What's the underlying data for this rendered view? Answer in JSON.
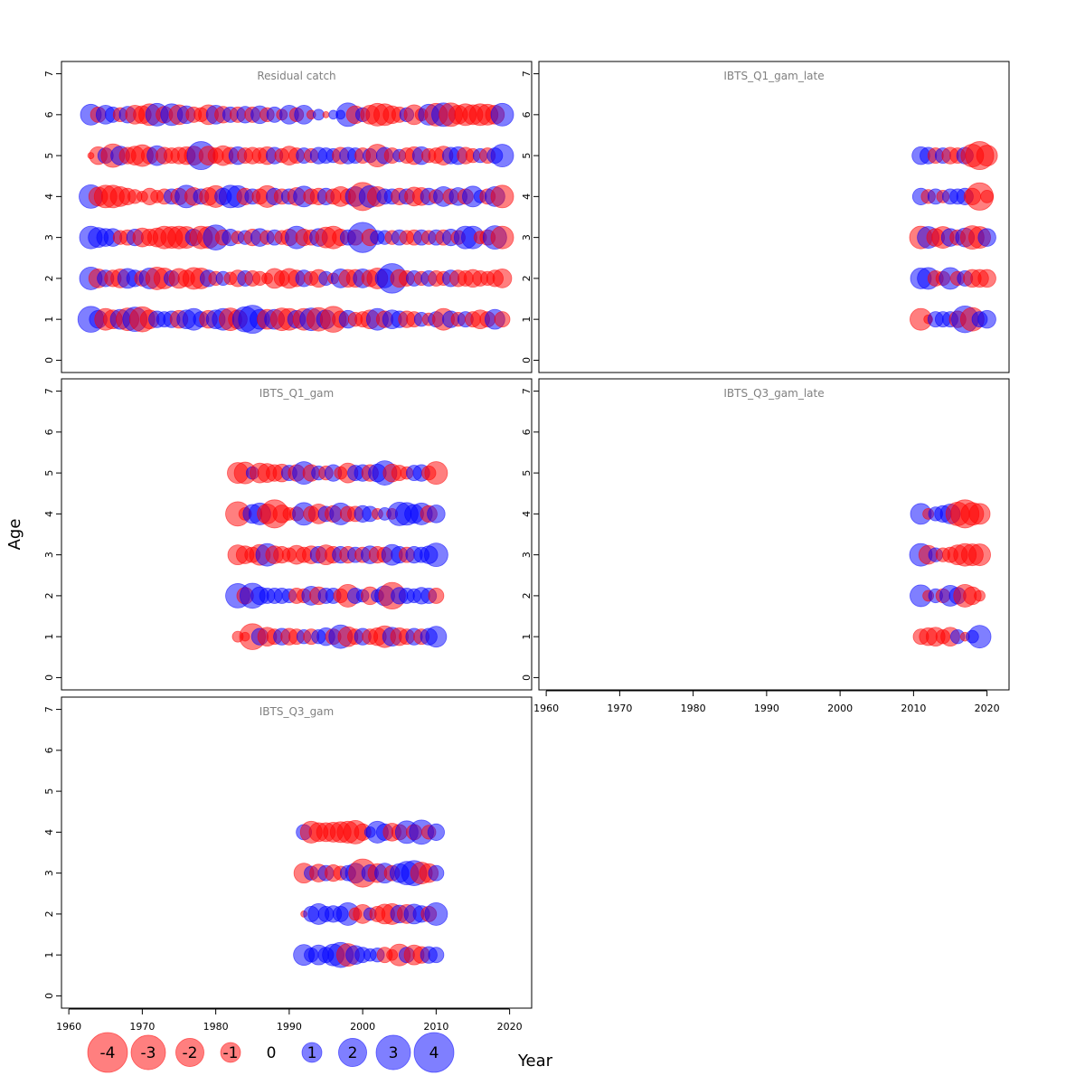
{
  "chart_data": {
    "type": "scatter",
    "encoding": "bubble",
    "xlabel": "Year",
    "ylabel": "Age",
    "xlim": [
      1959,
      2023
    ],
    "ylim": [
      -0.3,
      7.3
    ],
    "x_ticks": [
      "1960",
      "1970",
      "1980",
      "1990",
      "2000",
      "2010",
      "2020"
    ],
    "y_ticks": [
      "0",
      "1",
      "2",
      "3",
      "4",
      "5",
      "6",
      "7"
    ],
    "colors": {
      "positive": "#0000ff",
      "negative": "#ff0000",
      "fill_alpha": 0.5
    },
    "legend": {
      "placement": "bottom-left",
      "items": [
        {
          "label": "-4",
          "value": -4
        },
        {
          "label": "-3",
          "value": -3
        },
        {
          "label": "-2",
          "value": -2
        },
        {
          "label": "-1",
          "value": -1
        },
        {
          "label": "0",
          "value": 0
        },
        {
          "label": "1",
          "value": 1
        },
        {
          "label": "2",
          "value": 2
        },
        {
          "label": "3",
          "value": 3
        },
        {
          "label": "4",
          "value": 4
        }
      ]
    },
    "panels": [
      {
        "title": "Residual catch",
        "years": [
          1963,
          2019
        ],
        "ages": [
          1,
          2,
          3,
          4,
          5,
          6
        ],
        "residuals": {
          "6": [
            1.1,
            -0.6,
            0.9,
            0.6,
            -0.5,
            0.7,
            -0.9,
            -0.8,
            -1.2,
            1.3,
            -0.7,
            1.2,
            -1.0,
            0.8,
            -0.6,
            -0.5,
            -1.0,
            0.9,
            -0.7,
            0.6,
            -0.6,
            0.7,
            -0.6,
            0.8,
            -0.5,
            0.6,
            -0.3,
            0.9,
            -0.5,
            0.9,
            -0.2,
            0.3,
            -0.1,
            0.2,
            0.2,
            1.4,
            -0.8,
            0.5,
            -0.9,
            -1.3,
            -1.2,
            -0.8,
            -0.6,
            0.5,
            -1.0,
            -0.4,
            1.1,
            -1.3,
            1.4,
            -1.4,
            -0.9,
            -1.2,
            -1.0,
            -1.2,
            -1.1,
            -0.9,
            1.3
          ],
          "5": [
            -0.1,
            -0.8,
            0.6,
            -1.4,
            0.9,
            -0.7,
            -0.9,
            -1.2,
            -0.7,
            1.0,
            -0.7,
            -0.6,
            -0.7,
            -0.8,
            -0.9,
            2.0,
            -0.9,
            -0.6,
            -1.0,
            -0.7,
            0.8,
            -0.6,
            -0.7,
            -0.6,
            -0.8,
            0.7,
            -0.5,
            -0.9,
            -0.6,
            0.6,
            -0.5,
            0.7,
            0.6,
            0.5,
            -0.7,
            0.7,
            0.6,
            -0.6,
            0.5,
            -1.3,
            0.7,
            -0.6,
            0.4,
            -0.6,
            -0.8,
            0.8,
            -0.5,
            -0.6,
            -0.9,
            0.7,
            0.8,
            -0.7,
            -0.5,
            0.5,
            -0.6,
            0.6,
            1.3
          ],
          "4": [
            1.4,
            -0.9,
            -1.3,
            -1.3,
            -1.0,
            -0.7,
            -0.5,
            -0.3,
            -0.7,
            -0.4,
            -0.6,
            0.6,
            -0.7,
            1.3,
            -0.8,
            0.6,
            -0.8,
            -1.2,
            0.7,
            1.3,
            1.2,
            -0.7,
            0.6,
            -0.6,
            -1.2,
            0.7,
            -0.6,
            0.6,
            -0.8,
            1.1,
            -0.6,
            -0.7,
            0.7,
            -0.6,
            -1.0,
            -0.6,
            1.0,
            -2.0,
            1.2,
            -1.0,
            0.6,
            0.6,
            -0.7,
            0.6,
            -0.9,
            -0.8,
            0.7,
            -0.5,
            1.0,
            -0.6,
            0.8,
            -0.6,
            1.1,
            0.4,
            -0.6,
            1.0,
            -1.3
          ],
          "3": [
            1.3,
            1.0,
            0.8,
            0.8,
            -0.5,
            -0.6,
            0.7,
            -0.9,
            -0.7,
            -0.9,
            -1.3,
            -1.2,
            -1.3,
            -1.2,
            0.7,
            -1.3,
            -1.2,
            1.6,
            -0.6,
            0.7,
            -0.4,
            0.5,
            -0.7,
            0.8,
            -0.5,
            0.6,
            -0.5,
            -0.7,
            1.3,
            -0.7,
            -0.6,
            0.8,
            -1.1,
            -1.3,
            -0.7,
            0.6,
            -0.6,
            2.3,
            -0.7,
            0.5,
            0.5,
            -0.5,
            0.6,
            -0.5,
            -0.6,
            0.6,
            -0.5,
            0.6,
            -0.6,
            0.7,
            -0.5,
            1.3,
            1.3,
            -0.4,
            -0.6,
            1.4,
            -1.3
          ],
          "2": [
            1.3,
            -0.9,
            0.7,
            -0.7,
            -0.9,
            1.0,
            0.7,
            -0.6,
            1.1,
            -1.3,
            -1.1,
            0.6,
            -1.0,
            -0.7,
            -1.2,
            -1.1,
            0.7,
            -0.5,
            0.5,
            -0.4,
            -0.7,
            0.6,
            -0.6,
            -0.5,
            -0.3,
            -1.0,
            -0.6,
            -1.0,
            -0.7,
            0.7,
            -0.5,
            -0.8,
            0.5,
            -0.3,
            0.9,
            -0.8,
            -0.8,
            0.9,
            -0.7,
            -1.1,
            0.9,
            2.2,
            -0.8,
            -0.6,
            0.6,
            -0.5,
            0.6,
            -0.6,
            -0.5,
            0.7,
            -0.7,
            -0.6,
            -0.8,
            -0.6,
            -0.5,
            -0.7,
            -0.9
          ],
          "1": [
            1.7,
            0.8,
            -1.2,
            -0.9,
            1.0,
            -1.3,
            1.5,
            -1.6,
            -0.9,
            0.7,
            0.6,
            0.7,
            -0.8,
            0.9,
            1.2,
            0.6,
            -0.8,
            0.9,
            1.2,
            -1.3,
            -0.9,
            1.6,
            2.0,
            1.0,
            -1.0,
            1.0,
            -1.3,
            -1.2,
            0.8,
            -1.2,
            1.3,
            -1.4,
            0.9,
            -1.7,
            -0.7,
            0.8,
            -0.5,
            -0.6,
            -0.9,
            1.2,
            -0.7,
            0.9,
            0.7,
            -0.7,
            -0.6,
            0.5,
            -0.4,
            0.6,
            -1.2,
            0.7,
            -0.5,
            0.6,
            -0.6,
            -0.9,
            -0.6,
            1.0,
            -0.6
          ]
        }
      },
      {
        "title": "IBTS_Q1_gam_late",
        "years": [
          2011,
          2020
        ],
        "ages": [
          1,
          2,
          3,
          4,
          5
        ],
        "residuals": {
          "5": [
            0.8,
            0.7,
            -0.6,
            0.6,
            -0.7,
            -0.6,
            0.7,
            -1.3,
            -2.0,
            -1.1
          ],
          "4": [
            0.7,
            -0.5,
            0.6,
            -0.4,
            0.6,
            0.6,
            0.7,
            -0.7,
            -1.9,
            -0.4
          ],
          "3": [
            -1.3,
            1.2,
            -0.8,
            -1.2,
            0.8,
            -0.6,
            0.9,
            -1.4,
            -1.2,
            0.8
          ],
          "2": [
            1.1,
            1.2,
            -0.6,
            -0.5,
            1.2,
            -0.5,
            0.6,
            -0.8,
            -0.8,
            -0.8
          ],
          "1": [
            -1.2,
            -0.2,
            0.6,
            0.6,
            0.6,
            -0.7,
            1.8,
            -1.4,
            0.6,
            0.8
          ]
        }
      },
      {
        "title": "IBTS_Q1_gam",
        "years": [
          1983,
          2010
        ],
        "ages": [
          1,
          2,
          3,
          4,
          5
        ],
        "residuals": {
          "5": [
            -1.1,
            -1.2,
            0.4,
            -1.0,
            -0.9,
            -0.7,
            -0.8,
            0.6,
            -0.7,
            1.3,
            -0.7,
            0.5,
            -0.5,
            0.7,
            -0.4,
            -1.0,
            0.6,
            0.7,
            -0.7,
            0.8,
            1.5,
            -0.8,
            -0.6,
            -0.4,
            0.6,
            0.7,
            -0.5,
            -1.3
          ],
          "4": [
            -1.5,
            -0.4,
            0.9,
            1.2,
            -1.0,
            -2.0,
            -0.8,
            -0.4,
            -0.5,
            1.3,
            -0.6,
            -1.0,
            0.6,
            -0.7,
            1.2,
            -0.6,
            -0.6,
            0.7,
            0.6,
            -0.3,
            0.4,
            -0.3,
            1.4,
            1.3,
            0.9,
            1.2,
            -0.7,
            0.8
          ],
          "3": [
            -1.0,
            -0.8,
            -0.6,
            -1.1,
            1.3,
            -0.8,
            -0.7,
            -0.5,
            -0.9,
            -0.6,
            -0.8,
            0.7,
            -1.0,
            -0.7,
            0.7,
            -0.7,
            0.6,
            -0.6,
            0.8,
            -0.7,
            -0.6,
            1.1,
            0.7,
            -0.6,
            0.7,
            0.6,
            0.8,
            1.4
          ],
          "2": [
            1.5,
            -0.7,
            1.6,
            0.8,
            0.6,
            0.6,
            0.6,
            0.5,
            -0.6,
            -0.5,
            0.9,
            -0.8,
            0.6,
            0.6,
            -0.5,
            -1.3,
            0.6,
            0.4,
            -0.8,
            0.4,
            1.0,
            -1.8,
            0.7,
            0.6,
            0.5,
            0.7,
            0.6,
            -0.6
          ],
          "1": [
            -0.3,
            -0.2,
            -1.7,
            0.7,
            -0.9,
            -0.6,
            0.7,
            -0.7,
            -0.6,
            0.5,
            -0.6,
            0.5,
            0.8,
            -0.6,
            1.4,
            -1.0,
            -0.6,
            0.7,
            -0.6,
            -0.8,
            -1.2,
            0.9,
            -0.8,
            -0.6,
            0.7,
            -0.6,
            0.7,
            1.1
          ]
        }
      },
      {
        "title": "IBTS_Q3_gam_late",
        "years": [
          2011,
          2019
        ],
        "ages": [
          1,
          2,
          3,
          4
        ],
        "residuals": {
          "4": [
            1.1,
            -0.3,
            0.5,
            0.7,
            1.0,
            -1.4,
            -2.0,
            -1.3,
            -1.1
          ],
          "3": [
            1.3,
            -0.9,
            0.5,
            -0.5,
            -0.6,
            -1.0,
            -1.3,
            -1.2,
            -1.2
          ],
          "2": [
            1.2,
            -0.3,
            0.5,
            -0.5,
            1.1,
            0.7,
            -1.3,
            -0.8,
            -0.3
          ],
          "1": [
            -0.6,
            -0.8,
            -0.9,
            -0.5,
            -0.9,
            0.5,
            -0.2,
            0.4,
            1.3
          ]
        }
      },
      {
        "title": "IBTS_Q3_gam",
        "years": [
          1992,
          2010
        ],
        "ages": [
          1,
          2,
          3,
          4
        ],
        "residuals": {
          "4": [
            0.6,
            -1.2,
            -0.9,
            -0.9,
            -1.0,
            -1.1,
            -1.2,
            -1.4,
            -0.7,
            0.3,
            1.2,
            0.7,
            -0.8,
            -0.6,
            1.3,
            -0.6,
            1.5,
            -0.5,
            0.7
          ],
          "3": [
            -1.0,
            0.5,
            -0.8,
            0.6,
            -0.7,
            -0.5,
            0.6,
            1.0,
            -2.0,
            0.7,
            -0.9,
            1.0,
            -0.6,
            0.9,
            1.4,
            1.6,
            -1.2,
            -0.9,
            0.6
          ],
          "2": [
            -0.1,
            0.6,
            1.1,
            0.6,
            0.7,
            0.6,
            1.3,
            -0.4,
            -0.9,
            0.4,
            -0.6,
            -1.0,
            -1.1,
            0.8,
            -0.9,
            1.0,
            0.7,
            -0.6,
            1.3
          ],
          "1": [
            1.1,
            0.5,
            1.0,
            0.6,
            1.2,
            1.6,
            -1.3,
            0.9,
            0.6,
            0.4,
            0.5,
            -0.6,
            -0.3,
            -1.2,
            0.6,
            -1.0,
            -0.7,
            0.7,
            0.6
          ]
        }
      }
    ]
  }
}
